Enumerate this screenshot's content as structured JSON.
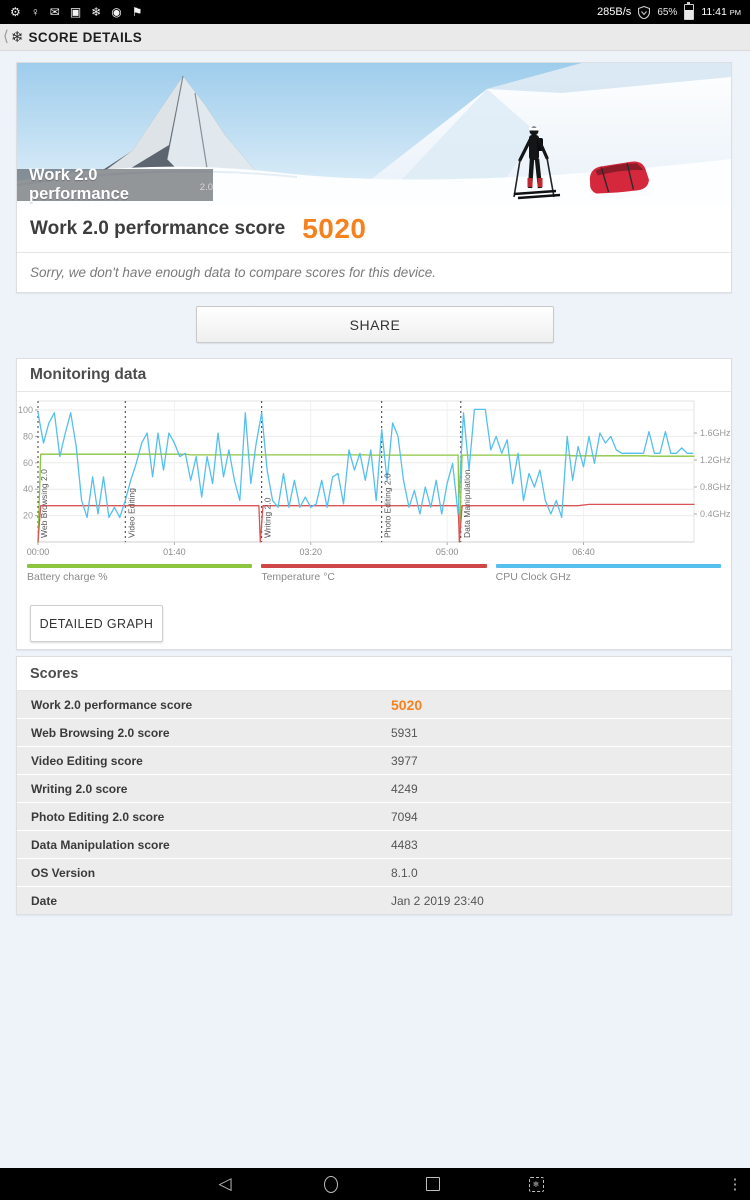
{
  "theme": {
    "accent": "#f5821f",
    "page_bg": "#edf3f9"
  },
  "status_bar": {
    "left_icons": [
      {
        "name": "settings-gear-icon",
        "glyph": "⚙"
      },
      {
        "name": "person-icon",
        "glyph": "♀"
      },
      {
        "name": "mail-icon",
        "glyph": "✉"
      },
      {
        "name": "photos-icon",
        "glyph": "▣"
      },
      {
        "name": "pcmark-snowflake-icon",
        "glyph": "❄"
      },
      {
        "name": "circle-app-icon",
        "glyph": "◉"
      },
      {
        "name": "play-flag-icon",
        "glyph": "⚑"
      }
    ],
    "net_speed": "285B/s",
    "battery_percent": "65%",
    "time": "11:41",
    "meridiem": "PM"
  },
  "app_bar": {
    "back_glyph": "⟨",
    "logo_glyph": "❄",
    "title": "SCORE DETAILS"
  },
  "hero": {
    "banner_title": "Work 2.0 performance",
    "banner_badge": "2.0"
  },
  "score_header": {
    "label": "Work 2.0 performance score",
    "value": "5020"
  },
  "notice": "Sorry, we don't have enough data to compare scores for this device.",
  "share_button": "SHARE",
  "monitoring": {
    "title": "Monitoring data",
    "detailed_graph_button": "DETAILED GRAPH",
    "legend": [
      {
        "label": "Battery charge %",
        "color": "#8cc63f"
      },
      {
        "label": "Temperature °C",
        "color": "#cf4747"
      },
      {
        "label": "CPU Clock GHz",
        "color": "#55bfee"
      }
    ]
  },
  "chart_data": {
    "type": "line",
    "title": "Monitoring data",
    "duration_s": 481,
    "grid": true,
    "legend_position": "bottom",
    "x_ticks": [
      {
        "t": 0,
        "label": "00:00"
      },
      {
        "t": 100,
        "label": "01:40"
      },
      {
        "t": 200,
        "label": "03:20"
      },
      {
        "t": 300,
        "label": "05:00"
      },
      {
        "t": 400,
        "label": "06:40"
      }
    ],
    "left_axis": {
      "min": 0,
      "max": 110,
      "ticks": [
        20,
        40,
        60,
        80,
        100
      ]
    },
    "right_axis": {
      "min": 0,
      "max": 2.0,
      "unit": "GHz",
      "ticks": [
        {
          "v": 0.4,
          "label": "0.4GHz"
        },
        {
          "v": 0.8,
          "label": "0.8GHz"
        },
        {
          "v": 1.2,
          "label": "1.2GHz"
        },
        {
          "v": 1.6,
          "label": "1.6GHz"
        }
      ]
    },
    "phases": [
      {
        "label": "Web Browsing 2.0",
        "t": 0
      },
      {
        "label": "Video Editing",
        "t": 64
      },
      {
        "label": "Writing 2.0",
        "t": 164
      },
      {
        "label": "Photo Editing 2.0",
        "t": 252
      },
      {
        "label": "Data Manipulation",
        "t": 310
      }
    ],
    "series": [
      {
        "name": "Battery charge %",
        "axis": "left",
        "color": "#8cc63f",
        "points": [
          [
            0,
            0
          ],
          [
            2,
            66.5
          ],
          [
            108,
            66.5
          ],
          [
            112,
            66
          ],
          [
            240,
            66
          ],
          [
            244,
            65.8
          ],
          [
            308,
            65.8
          ],
          [
            309,
            0
          ],
          [
            311,
            65.8
          ],
          [
            388,
            65.8
          ],
          [
            392,
            65.3
          ],
          [
            446,
            65.3
          ],
          [
            450,
            65
          ],
          [
            481,
            65
          ]
        ]
      },
      {
        "name": "Temperature °C",
        "axis": "left",
        "color": "#d95456",
        "points": [
          [
            0,
            0
          ],
          [
            2,
            27.5
          ],
          [
            162,
            27.5
          ],
          [
            163,
            0
          ],
          [
            165,
            27.5
          ],
          [
            308,
            27.5
          ],
          [
            309,
            0
          ],
          [
            311,
            27.5
          ],
          [
            396,
            27.5
          ],
          [
            404,
            28.5
          ],
          [
            481,
            28.5
          ]
        ]
      },
      {
        "name": "CPU Clock GHz",
        "axis": "right",
        "color": "#55bfee",
        "sample_step_s": 4,
        "values": [
          1.9,
          1.45,
          1.75,
          1.9,
          1.25,
          1.6,
          1.9,
          1.4,
          0.6,
          0.35,
          0.95,
          0.4,
          0.95,
          0.35,
          0.5,
          0.35,
          0.6,
          0.9,
          1.15,
          1.45,
          1.6,
          0.95,
          1.6,
          1.05,
          1.6,
          1.45,
          1.25,
          1.3,
          0.9,
          1.25,
          0.65,
          1.25,
          0.85,
          1.6,
          0.95,
          1.35,
          0.9,
          0.6,
          1.9,
          0.85,
          1.45,
          1.9,
          1.05,
          0.6,
          0.5,
          1.0,
          0.5,
          0.9,
          0.5,
          0.65,
          0.5,
          0.55,
          0.9,
          0.5,
          0.95,
          1.0,
          0.55,
          1.35,
          1.05,
          1.3,
          0.9,
          1.35,
          0.6,
          1.65,
          0.9,
          1.75,
          1.55,
          0.9,
          0.5,
          0.75,
          0.4,
          0.8,
          0.5,
          0.9,
          0.4,
          0.85,
          1.15,
          0.4,
          1.9,
          1.05,
          1.95,
          1.95,
          1.95,
          1.35,
          1.55,
          1.3,
          1.5,
          0.85,
          1.3,
          0.6,
          1.0,
          0.8,
          1.05,
          0.6,
          0.4,
          0.6,
          0.35,
          1.55,
          0.9,
          1.4,
          1.1,
          1.55,
          1.15,
          1.6,
          1.45,
          1.55,
          1.35,
          1.3,
          1.3,
          1.3,
          1.3,
          1.3,
          1.62,
          1.3,
          1.3,
          1.62,
          1.3,
          1.3,
          1.38,
          1.3,
          1.3
        ]
      }
    ]
  },
  "scores_table": {
    "title": "Scores",
    "rows": [
      {
        "label": "Work 2.0 performance score",
        "value": "5020",
        "highlight": true
      },
      {
        "label": "Web Browsing 2.0 score",
        "value": "5931"
      },
      {
        "label": "Video Editing score",
        "value": "3977"
      },
      {
        "label": "Writing 2.0 score",
        "value": "4249"
      },
      {
        "label": "Photo Editing 2.0 score",
        "value": "7094"
      },
      {
        "label": "Data Manipulation score",
        "value": "4483"
      },
      {
        "label": "OS Version",
        "value": "8.1.0"
      },
      {
        "label": "Date",
        "value": "Jan 2 2019 23:40"
      }
    ]
  },
  "nav_bar": {
    "back_glyph": "◁",
    "menu_glyph": "⋮",
    "screenshot_glyph": "❄"
  }
}
